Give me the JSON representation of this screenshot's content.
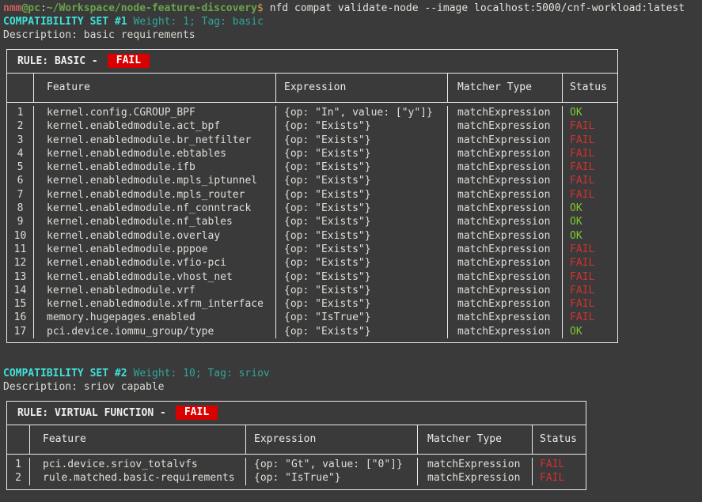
{
  "prompt": {
    "user": "nmm",
    "host": "@pc",
    "colon": ":",
    "path": "~/Workspace/node-feature-discovery",
    "symbol": "$",
    "command": "nfd compat validate-node --image localhost:5000/cnf-workload:latest"
  },
  "sets": [
    {
      "title": "COMPATIBILITY SET #1",
      "meta": "Weight: 1; Tag: basic",
      "description": "Description: basic requirements",
      "rule_label": "RULE: BASIC -",
      "rule_status": "FAIL",
      "columns": [
        "Feature",
        "Expression",
        "Matcher Type",
        "Status"
      ],
      "rows": [
        {
          "index": "1",
          "feature": "kernel.config.CGROUP_BPF",
          "expression": "{op: \"In\", value: [\"y\"]}",
          "matcher": "matchExpression",
          "status": "OK"
        },
        {
          "index": "2",
          "feature": "kernel.enabledmodule.act_bpf",
          "expression": "{op: \"Exists\"}",
          "matcher": "matchExpression",
          "status": "FAIL"
        },
        {
          "index": "3",
          "feature": "kernel.enabledmodule.br_netfilter",
          "expression": "{op: \"Exists\"}",
          "matcher": "matchExpression",
          "status": "FAIL"
        },
        {
          "index": "4",
          "feature": "kernel.enabledmodule.ebtables",
          "expression": "{op: \"Exists\"}",
          "matcher": "matchExpression",
          "status": "FAIL"
        },
        {
          "index": "5",
          "feature": "kernel.enabledmodule.ifb",
          "expression": "{op: \"Exists\"}",
          "matcher": "matchExpression",
          "status": "FAIL"
        },
        {
          "index": "6",
          "feature": "kernel.enabledmodule.mpls_iptunnel",
          "expression": "{op: \"Exists\"}",
          "matcher": "matchExpression",
          "status": "FAIL"
        },
        {
          "index": "7",
          "feature": "kernel.enabledmodule.mpls_router",
          "expression": "{op: \"Exists\"}",
          "matcher": "matchExpression",
          "status": "FAIL"
        },
        {
          "index": "8",
          "feature": "kernel.enabledmodule.nf_conntrack",
          "expression": "{op: \"Exists\"}",
          "matcher": "matchExpression",
          "status": "OK"
        },
        {
          "index": "9",
          "feature": "kernel.enabledmodule.nf_tables",
          "expression": "{op: \"Exists\"}",
          "matcher": "matchExpression",
          "status": "OK"
        },
        {
          "index": "10",
          "feature": "kernel.enabledmodule.overlay",
          "expression": "{op: \"Exists\"}",
          "matcher": "matchExpression",
          "status": "OK"
        },
        {
          "index": "11",
          "feature": "kernel.enabledmodule.pppoe",
          "expression": "{op: \"Exists\"}",
          "matcher": "matchExpression",
          "status": "FAIL"
        },
        {
          "index": "12",
          "feature": "kernel.enabledmodule.vfio-pci",
          "expression": "{op: \"Exists\"}",
          "matcher": "matchExpression",
          "status": "FAIL"
        },
        {
          "index": "13",
          "feature": "kernel.enabledmodule.vhost_net",
          "expression": "{op: \"Exists\"}",
          "matcher": "matchExpression",
          "status": "FAIL"
        },
        {
          "index": "14",
          "feature": "kernel.enabledmodule.vrf",
          "expression": "{op: \"Exists\"}",
          "matcher": "matchExpression",
          "status": "FAIL"
        },
        {
          "index": "15",
          "feature": "kernel.enabledmodule.xfrm_interface",
          "expression": "{op: \"Exists\"}",
          "matcher": "matchExpression",
          "status": "FAIL"
        },
        {
          "index": "16",
          "feature": "memory.hugepages.enabled",
          "expression": "{op: \"IsTrue\"}",
          "matcher": "matchExpression",
          "status": "FAIL"
        },
        {
          "index": "17",
          "feature": "pci.device.iommu_group/type",
          "expression": "{op: \"Exists\"}",
          "matcher": "matchExpression",
          "status": "OK"
        }
      ]
    },
    {
      "title": "COMPATIBILITY SET #2",
      "meta": "Weight: 10; Tag: sriov",
      "description": "Description: sriov capable",
      "rule_label": "RULE: VIRTUAL FUNCTION -",
      "rule_status": "FAIL",
      "columns": [
        "Feature",
        "Expression",
        "Matcher Type",
        "Status"
      ],
      "rows": [
        {
          "index": "1",
          "feature": "pci.device.sriov_totalvfs",
          "expression": "{op: \"Gt\", value: [\"0\"]}",
          "matcher": "matchExpression",
          "status": "FAIL"
        },
        {
          "index": "2",
          "feature": "rule.matched.basic-requirements",
          "expression": "{op: \"IsTrue\"}",
          "matcher": "matchExpression",
          "status": "FAIL"
        }
      ]
    }
  ],
  "colors": {
    "background": "#3a3a3a",
    "foreground": "#e0ddd7",
    "prompt_user_red": "#cd5c5c",
    "prompt_path_green": "#69a647",
    "prompt_dollar_yellow": "#d4a242",
    "set_title_cyan": "#40e0d8",
    "set_meta_teal": "#2fa69a",
    "status_ok_green": "#7ec832",
    "status_fail_red": "#d03232",
    "fail_badge_background": "#d90000",
    "table_border": "#ebebeb"
  }
}
